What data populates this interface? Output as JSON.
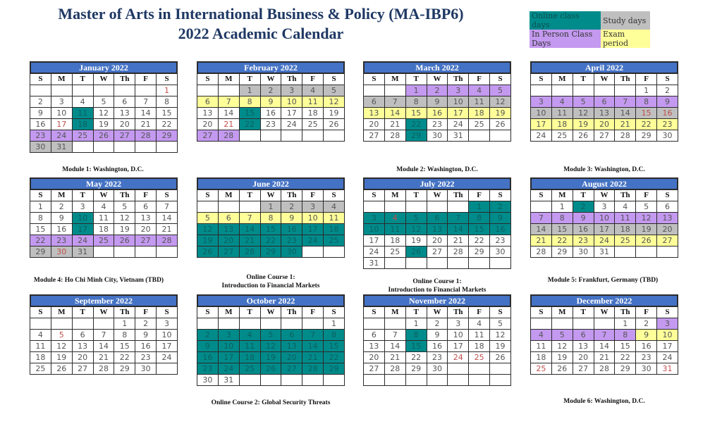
{
  "title": {
    "line1": "Master of Arts in International Business & Policy (MA-IBP6)",
    "line2": "2022 Academic Calendar"
  },
  "legend": {
    "online": "Online class days",
    "study": "Study days",
    "inperson": "In Person Class Days",
    "exam": "Exam period"
  },
  "colors": {
    "header_blue": "#4472c4",
    "online": "#008b8b",
    "study": "#bfbfbf",
    "inperson": "#c499f0",
    "exam": "#ffff99",
    "holiday_text": "#c0504d",
    "title": "#1f3864"
  },
  "dow": [
    "S",
    "M",
    "T",
    "W",
    "Th",
    "F",
    "S"
  ],
  "months": [
    {
      "name": "January 2022",
      "weeks": [
        [
          "",
          "",
          "",
          "",
          "",
          "",
          "1"
        ],
        [
          "2",
          "3",
          "4",
          "5",
          "6",
          "7",
          "8"
        ],
        [
          "9",
          "10",
          "11",
          "12",
          "13",
          "14",
          "15"
        ],
        [
          "16",
          "17",
          "18",
          "19",
          "20",
          "21",
          "22"
        ],
        [
          "23",
          "24",
          "25",
          "26",
          "27",
          "28",
          "29"
        ],
        [
          "30",
          "31",
          "",
          "",
          "",
          "",
          ""
        ]
      ],
      "styles": [
        [
          "",
          "",
          "",
          "",
          "",
          "",
          "h"
        ],
        [
          "",
          "",
          "",
          "",
          "",
          "",
          ""
        ],
        [
          "",
          "",
          "o",
          "",
          "",
          "",
          ""
        ],
        [
          "",
          "h",
          "o",
          "",
          "",
          "",
          ""
        ],
        [
          "p",
          "p",
          "p",
          "p",
          "p",
          "p",
          "p"
        ],
        [
          "s",
          "s",
          "",
          "",
          "",
          "",
          ""
        ]
      ]
    },
    {
      "name": "February 2022",
      "weeks": [
        [
          "",
          "",
          "1",
          "2",
          "3",
          "4",
          "5"
        ],
        [
          "6",
          "7",
          "8",
          "9",
          "10",
          "11",
          "12"
        ],
        [
          "13",
          "14",
          "15",
          "16",
          "17",
          "18",
          "19"
        ],
        [
          "20",
          "21",
          "22",
          "23",
          "24",
          "25",
          "26"
        ],
        [
          "27",
          "28",
          "",
          "",
          "",
          "",
          ""
        ]
      ],
      "styles": [
        [
          "",
          "",
          "s",
          "s",
          "s",
          "s",
          "s"
        ],
        [
          "e",
          "e",
          "e",
          "e",
          "e",
          "e",
          "e"
        ],
        [
          "",
          "",
          "o",
          "",
          "",
          "",
          ""
        ],
        [
          "",
          "h",
          "o",
          "",
          "",
          "",
          ""
        ],
        [
          "p",
          "p",
          "",
          "",
          "",
          "",
          ""
        ]
      ]
    },
    {
      "name": "March 2022",
      "weeks": [
        [
          "",
          "",
          "1",
          "2",
          "3",
          "4",
          "5"
        ],
        [
          "6",
          "7",
          "8",
          "9",
          "10",
          "11",
          "12"
        ],
        [
          "13",
          "14",
          "15",
          "16",
          "17",
          "18",
          "19"
        ],
        [
          "20",
          "21",
          "22",
          "23",
          "24",
          "25",
          "26"
        ],
        [
          "27",
          "28",
          "29",
          "30",
          "31",
          "",
          ""
        ]
      ],
      "styles": [
        [
          "",
          "",
          "p",
          "p",
          "p",
          "p",
          "p"
        ],
        [
          "s",
          "s",
          "s",
          "s",
          "s",
          "s",
          "s"
        ],
        [
          "e",
          "e",
          "e",
          "e",
          "e",
          "e",
          "e"
        ],
        [
          "",
          "",
          "o",
          "",
          "",
          "",
          ""
        ],
        [
          "",
          "",
          "o",
          "",
          "",
          "",
          ""
        ]
      ]
    },
    {
      "name": "April 2022",
      "weeks": [
        [
          "",
          "",
          "",
          "",
          "",
          "1",
          "2"
        ],
        [
          "3",
          "4",
          "5",
          "6",
          "7",
          "8",
          "9"
        ],
        [
          "10",
          "11",
          "12",
          "13",
          "14",
          "15",
          "16"
        ],
        [
          "17",
          "18",
          "19",
          "20",
          "21",
          "22",
          "23"
        ],
        [
          "24",
          "25",
          "26",
          "27",
          "28",
          "29",
          "30"
        ]
      ],
      "styles": [
        [
          "",
          "",
          "",
          "",
          "",
          "",
          ""
        ],
        [
          "p",
          "p",
          "p",
          "p",
          "p",
          "p",
          "p"
        ],
        [
          "s",
          "s",
          "s",
          "s",
          "s",
          "sh",
          "sh"
        ],
        [
          "e",
          "e",
          "e",
          "e",
          "e",
          "e",
          "e"
        ],
        [
          "",
          "",
          "",
          "",
          "",
          "",
          ""
        ]
      ]
    },
    {
      "name": "May 2022",
      "weeks": [
        [
          "1",
          "2",
          "3",
          "4",
          "5",
          "6",
          "7"
        ],
        [
          "8",
          "9",
          "10",
          "11",
          "12",
          "13",
          "14"
        ],
        [
          "15",
          "16",
          "17",
          "18",
          "19",
          "20",
          "21"
        ],
        [
          "22",
          "23",
          "24",
          "25",
          "26",
          "27",
          "28"
        ],
        [
          "29",
          "30",
          "31",
          "",
          "",
          "",
          ""
        ]
      ],
      "styles": [
        [
          "",
          "",
          "",
          "",
          "",
          "",
          ""
        ],
        [
          "",
          "",
          "o",
          "",
          "",
          "",
          ""
        ],
        [
          "",
          "",
          "o",
          "",
          "",
          "",
          ""
        ],
        [
          "p",
          "p",
          "p",
          "p",
          "p",
          "p",
          "p"
        ],
        [
          "s",
          "sh",
          "s",
          "",
          "",
          "",
          ""
        ]
      ]
    },
    {
      "name": "June 2022",
      "weeks": [
        [
          "",
          "",
          "",
          "1",
          "2",
          "3",
          "4"
        ],
        [
          "5",
          "6",
          "7",
          "8",
          "9",
          "10",
          "11"
        ],
        [
          "12",
          "13",
          "14",
          "15",
          "16",
          "17",
          "18"
        ],
        [
          "19",
          "20",
          "21",
          "22",
          "23",
          "24",
          "25"
        ],
        [
          "26",
          "27",
          "28",
          "29",
          "30",
          "",
          ""
        ]
      ],
      "styles": [
        [
          "",
          "",
          "",
          "s",
          "s",
          "s",
          "s"
        ],
        [
          "e",
          "e",
          "e",
          "e",
          "e",
          "e",
          "e"
        ],
        [
          "o",
          "o",
          "o",
          "o",
          "o",
          "o",
          "o"
        ],
        [
          "o",
          "o",
          "o",
          "o",
          "o",
          "o",
          "o"
        ],
        [
          "o",
          "o",
          "o",
          "o",
          "o",
          "",
          ""
        ]
      ]
    },
    {
      "name": "July 2022",
      "weeks": [
        [
          "",
          "",
          "",
          "",
          "",
          "1",
          "2"
        ],
        [
          "3",
          "4",
          "5",
          "6",
          "7",
          "8",
          "9"
        ],
        [
          "10",
          "11",
          "12",
          "13",
          "14",
          "15",
          "16"
        ],
        [
          "17",
          "18",
          "19",
          "20",
          "21",
          "22",
          "23"
        ],
        [
          "24",
          "25",
          "26",
          "27",
          "28",
          "29",
          "30"
        ],
        [
          "31",
          "",
          "",
          "",
          "",
          "",
          ""
        ]
      ],
      "styles": [
        [
          "",
          "",
          "",
          "",
          "",
          "o",
          "o"
        ],
        [
          "o",
          "oh",
          "o",
          "o",
          "o",
          "o",
          "o"
        ],
        [
          "o",
          "o",
          "o",
          "o",
          "o",
          "o",
          "o"
        ],
        [
          "",
          "",
          "",
          "",
          "",
          "",
          ""
        ],
        [
          "",
          "",
          "o",
          "",
          "",
          "",
          ""
        ],
        [
          "",
          "",
          "",
          "",
          "",
          "",
          ""
        ]
      ]
    },
    {
      "name": "August 2022",
      "weeks": [
        [
          "",
          "1",
          "2",
          "3",
          "4",
          "5",
          "6"
        ],
        [
          "7",
          "8",
          "9",
          "10",
          "11",
          "12",
          "13"
        ],
        [
          "14",
          "15",
          "16",
          "17",
          "18",
          "19",
          "20"
        ],
        [
          "21",
          "22",
          "23",
          "24",
          "25",
          "26",
          "27"
        ],
        [
          "28",
          "29",
          "30",
          "31",
          "",
          "",
          ""
        ]
      ],
      "styles": [
        [
          "",
          "",
          "o",
          "",
          "",
          "",
          ""
        ],
        [
          "p",
          "p",
          "p",
          "p",
          "p",
          "p",
          "p"
        ],
        [
          "s",
          "s",
          "s",
          "s",
          "s",
          "s",
          "s"
        ],
        [
          "e",
          "e",
          "e",
          "e",
          "e",
          "e",
          "e"
        ],
        [
          "",
          "",
          "",
          "",
          "",
          "",
          ""
        ]
      ]
    },
    {
      "name": "September 2022",
      "weeks": [
        [
          "",
          "",
          "",
          "",
          "1",
          "2",
          "3"
        ],
        [
          "4",
          "5",
          "6",
          "7",
          "8",
          "9",
          "10"
        ],
        [
          "11",
          "12",
          "13",
          "14",
          "15",
          "16",
          "17"
        ],
        [
          "18",
          "19",
          "20",
          "21",
          "22",
          "23",
          "24"
        ],
        [
          "25",
          "26",
          "27",
          "28",
          "29",
          "30",
          ""
        ]
      ],
      "styles": [
        [
          "",
          "",
          "",
          "",
          "",
          "",
          ""
        ],
        [
          "",
          "h",
          "",
          "",
          "",
          "",
          ""
        ],
        [
          "",
          "",
          "",
          "",
          "",
          "",
          ""
        ],
        [
          "",
          "",
          "",
          "",
          "",
          "",
          ""
        ],
        [
          "",
          "",
          "",
          "",
          "",
          "",
          ""
        ]
      ]
    },
    {
      "name": "October 2022",
      "weeks": [
        [
          "",
          "",
          "",
          "",
          "",
          "",
          "1"
        ],
        [
          "2",
          "3",
          "4",
          "5",
          "6",
          "7",
          "8"
        ],
        [
          "9",
          "10",
          "11",
          "12",
          "13",
          "14",
          "15"
        ],
        [
          "16",
          "17",
          "18",
          "19",
          "20",
          "21",
          "22"
        ],
        [
          "23",
          "24",
          "25",
          "26",
          "27",
          "28",
          "29"
        ],
        [
          "30",
          "31",
          "",
          "",
          "",
          "",
          ""
        ]
      ],
      "styles": [
        [
          "",
          "",
          "",
          "",
          "",
          "",
          ""
        ],
        [
          "o",
          "o",
          "o",
          "o",
          "o",
          "o",
          "o"
        ],
        [
          "o",
          "o",
          "o",
          "o",
          "o",
          "o",
          "o"
        ],
        [
          "o",
          "o",
          "o",
          "o",
          "o",
          "o",
          "o"
        ],
        [
          "o",
          "o",
          "o",
          "o",
          "o",
          "o",
          "o"
        ],
        [
          "",
          "",
          "",
          "",
          "",
          "",
          ""
        ]
      ]
    },
    {
      "name": "November 2022",
      "weeks": [
        [
          "",
          "",
          "1",
          "2",
          "3",
          "4",
          "5"
        ],
        [
          "6",
          "7",
          "8",
          "9",
          "10",
          "11",
          "12"
        ],
        [
          "13",
          "14",
          "15",
          "16",
          "17",
          "18",
          "19"
        ],
        [
          "20",
          "21",
          "22",
          "23",
          "24",
          "25",
          "26"
        ],
        [
          "27",
          "28",
          "29",
          "30",
          "",
          "",
          ""
        ],
        [
          "",
          "",
          "",
          "",
          "",
          "",
          ""
        ]
      ],
      "styles": [
        [
          "",
          "",
          "",
          "",
          "",
          "",
          ""
        ],
        [
          "",
          "",
          "o",
          "",
          "",
          "",
          ""
        ],
        [
          "",
          "",
          "o",
          "",
          "",
          "",
          ""
        ],
        [
          "",
          "",
          "",
          "",
          "h",
          "h",
          ""
        ],
        [
          "",
          "",
          "",
          "",
          "",
          "",
          ""
        ],
        [
          "",
          "",
          "",
          "",
          "",
          "",
          ""
        ]
      ]
    },
    {
      "name": "December 2022",
      "weeks": [
        [
          "",
          "",
          "",
          "",
          "1",
          "2",
          "3"
        ],
        [
          "4",
          "5",
          "6",
          "7",
          "8",
          "9",
          "10"
        ],
        [
          "11",
          "12",
          "13",
          "14",
          "15",
          "16",
          "17"
        ],
        [
          "18",
          "19",
          "20",
          "21",
          "22",
          "23",
          "24"
        ],
        [
          "25",
          "26",
          "27",
          "28",
          "29",
          "30",
          "31"
        ]
      ],
      "styles": [
        [
          "",
          "",
          "",
          "",
          "",
          "",
          "p"
        ],
        [
          "p",
          "p",
          "p",
          "p",
          "p",
          "e",
          "e"
        ],
        [
          "",
          "",
          "",
          "",
          "",
          "",
          ""
        ],
        [
          "",
          "",
          "",
          "",
          "",
          "",
          ""
        ],
        [
          "h",
          "",
          "",
          "",
          "",
          "",
          "h"
        ]
      ]
    }
  ],
  "captions": {
    "module1": "Module 1: Washington, D.C.",
    "module2": "Module 2: Washington, D.C.",
    "module3": "Module 3: Washington, D.C.",
    "module4": "Module 4: Ho Chi Minh City, Vietnam (TBD)",
    "online1_june_l1": "Online Course 1:",
    "online1_june_l2": "Introduction to Financial Markets",
    "online1_july_l1": "Online Course 1:",
    "online1_july_l2": "Introduction to Financial Markets",
    "module5": "Module 5: Frankfurt, Germany (TBD)",
    "online2": "Online Course 2: Global Security Threats",
    "module6": "Module 6: Washington, D.C."
  }
}
